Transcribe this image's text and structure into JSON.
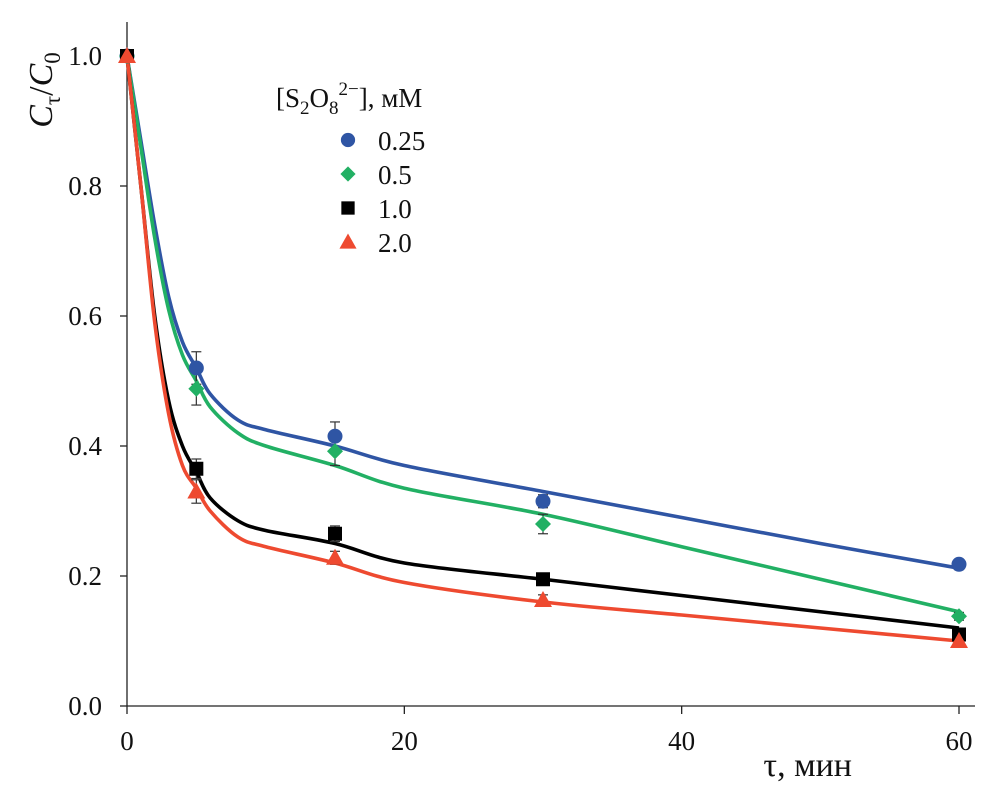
{
  "chart_data": {
    "type": "scatter",
    "x_label": "τ, мин",
    "y_label": {
      "base": "C",
      "sub1": "τ",
      "slash": "/",
      "base2": "C",
      "sub2": "0"
    },
    "legend_title": {
      "prefix": "[S",
      "sub1": "2",
      "mid": "O",
      "sub2": "8",
      "sup": "2−",
      "suffix": "], мМ"
    },
    "xlim": [
      0,
      60
    ],
    "ylim": [
      0,
      1.0
    ],
    "x_ticks": [
      0,
      20,
      40,
      60
    ],
    "x_tick_labels": [
      "0",
      "20",
      "40",
      "60"
    ],
    "y_ticks": [
      0,
      0.2,
      0.4,
      0.6,
      0.8,
      1.0
    ],
    "y_tick_labels": [
      "0.0",
      "0.2",
      "0.4",
      "0.6",
      "0.8",
      "1.0"
    ],
    "series": [
      {
        "name": "0.25",
        "marker": "circle",
        "color": "#2f55a4",
        "x": [
          0,
          5,
          15,
          30,
          60
        ],
        "y": [
          1.0,
          0.52,
          0.415,
          0.315,
          0.218
        ],
        "err": [
          0,
          0.025,
          0.022,
          0.01,
          0.008
        ],
        "fit_x": [
          0,
          1,
          2,
          3,
          4,
          5,
          6,
          8,
          10,
          15,
          20,
          30,
          40,
          50,
          60
        ],
        "fit_y": [
          1.0,
          0.87,
          0.74,
          0.63,
          0.56,
          0.52,
          0.48,
          0.44,
          0.425,
          0.4,
          0.37,
          0.33,
          0.29,
          0.25,
          0.212
        ]
      },
      {
        "name": "0.5",
        "marker": "diamond",
        "color": "#22b064",
        "x": [
          0,
          5,
          15,
          30,
          60
        ],
        "y": [
          1.0,
          0.488,
          0.392,
          0.28,
          0.138
        ],
        "err": [
          0,
          0.025,
          0.022,
          0.015,
          0.006
        ],
        "fit_x": [
          0,
          1,
          2,
          3,
          4,
          5,
          6,
          8,
          10,
          15,
          20,
          30,
          40,
          50,
          60
        ],
        "fit_y": [
          1.0,
          0.86,
          0.72,
          0.61,
          0.54,
          0.5,
          0.46,
          0.42,
          0.4,
          0.37,
          0.335,
          0.295,
          0.245,
          0.195,
          0.145
        ]
      },
      {
        "name": "1.0",
        "marker": "square",
        "color": "#000000",
        "x": [
          0,
          5,
          15,
          30,
          60
        ],
        "y": [
          1.0,
          0.365,
          0.265,
          0.195,
          0.11
        ],
        "err": [
          0,
          0.015,
          0.012,
          0.008,
          0.005
        ],
        "fit_x": [
          0,
          1,
          2,
          3,
          4,
          5,
          6,
          8,
          10,
          15,
          20,
          30,
          40,
          50,
          60
        ],
        "fit_y": [
          1.0,
          0.8,
          0.6,
          0.47,
          0.4,
          0.36,
          0.32,
          0.285,
          0.27,
          0.25,
          0.22,
          0.195,
          0.17,
          0.145,
          0.12
        ]
      },
      {
        "name": "2.0",
        "marker": "triangle",
        "color": "#ee4a30",
        "x": [
          0,
          5,
          15,
          30,
          60
        ],
        "y": [
          1.0,
          0.33,
          0.228,
          0.163,
          0.1
        ],
        "err": [
          0,
          0.018,
          0.01,
          0.008,
          0.005
        ],
        "fit_x": [
          0,
          1,
          2,
          3,
          4,
          5,
          6,
          8,
          10,
          15,
          20,
          30,
          40,
          50,
          60
        ],
        "fit_y": [
          1.0,
          0.8,
          0.59,
          0.45,
          0.37,
          0.335,
          0.3,
          0.26,
          0.245,
          0.22,
          0.19,
          0.16,
          0.14,
          0.12,
          0.1
        ]
      }
    ]
  }
}
